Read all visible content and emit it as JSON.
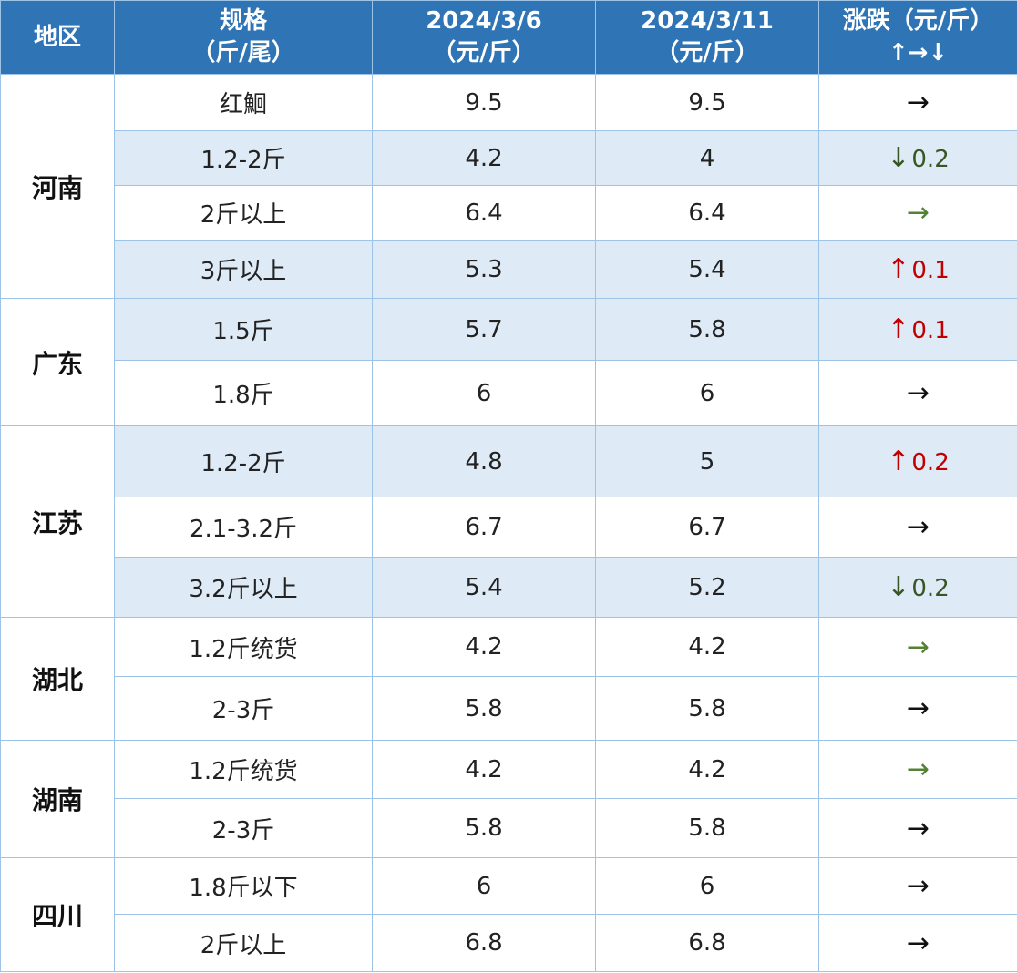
{
  "header": {
    "region": "地区",
    "spec_line1": "规格",
    "spec_line2": "（斤/尾）",
    "date1_line1": "2024/3/6",
    "date1_line2": "（元/斤）",
    "date2_line1": "2024/3/11",
    "date2_line2": "（元/斤）",
    "change_line1": "涨跌（元/斤）",
    "change_line2": "↑→↓"
  },
  "regions": [
    {
      "name": "河南",
      "rows": [
        {
          "spec": "红鮰",
          "p1": "9.5",
          "p2": "9.5",
          "arrow": "→",
          "amount": ""
        },
        {
          "spec": "1.2-2斤",
          "p1": "4.2",
          "p2": "4",
          "arrow": "↓",
          "amount": "0.2"
        },
        {
          "spec": "2斤以上",
          "p1": "6.4",
          "p2": "6.4",
          "arrow": "→",
          "amount": ""
        },
        {
          "spec": "3斤以上",
          "p1": "5.3",
          "p2": "5.4",
          "arrow": "↑",
          "amount": "0.1"
        }
      ]
    },
    {
      "name": "广东",
      "rows": [
        {
          "spec": "1.5斤",
          "p1": "5.7",
          "p2": "5.8",
          "arrow": "↑",
          "amount": "0.1"
        },
        {
          "spec": "1.8斤",
          "p1": "6",
          "p2": "6",
          "arrow": "→",
          "amount": ""
        }
      ]
    },
    {
      "name": "江苏",
      "rows": [
        {
          "spec": "1.2-2斤",
          "p1": "4.8",
          "p2": "5",
          "arrow": "↑",
          "amount": "0.2"
        },
        {
          "spec": "2.1-3.2斤",
          "p1": "6.7",
          "p2": "6.7",
          "arrow": "→",
          "amount": ""
        },
        {
          "spec": "3.2斤以上",
          "p1": "5.4",
          "p2": "5.2",
          "arrow": "↓",
          "amount": "0.2"
        }
      ]
    },
    {
      "name": "湖北",
      "rows": [
        {
          "spec": "1.2斤统货",
          "p1": "4.2",
          "p2": "4.2",
          "arrow": "→",
          "amount": ""
        },
        {
          "spec": "2-3斤",
          "p1": "5.8",
          "p2": "5.8",
          "arrow": "→",
          "amount": ""
        }
      ]
    },
    {
      "name": "湖南",
      "rows": [
        {
          "spec": "1.2斤统货",
          "p1": "4.2",
          "p2": "4.2",
          "arrow": "→",
          "amount": ""
        },
        {
          "spec": "2-3斤",
          "p1": "5.8",
          "p2": "5.8",
          "arrow": "→",
          "amount": ""
        }
      ]
    },
    {
      "name": "四川",
      "rows": [
        {
          "spec": "1.8斤以下",
          "p1": "6",
          "p2": "6",
          "arrow": "→",
          "amount": ""
        },
        {
          "spec": "2斤以上",
          "p1": "6.8",
          "p2": "6.8",
          "arrow": "→",
          "amount": ""
        }
      ]
    }
  ],
  "colors": {
    "header_bg": "#2f74b5",
    "border": "#9dc3e6",
    "row_shade": "#deebf7",
    "up": "#c00000",
    "down": "#375623",
    "flat_green": "#548235"
  }
}
